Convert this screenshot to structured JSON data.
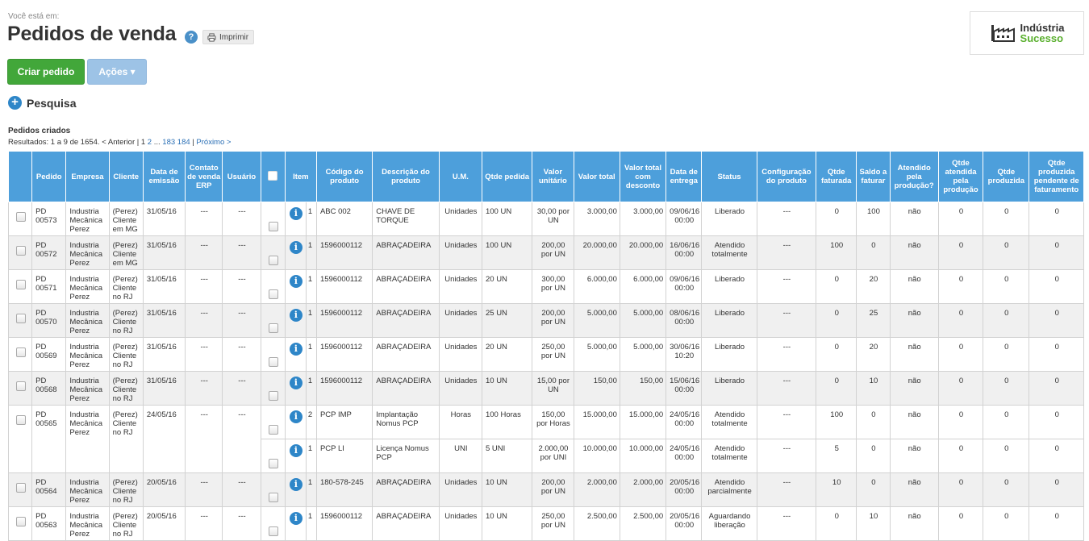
{
  "header": {
    "breadcrumb_label": "Você está em:",
    "title": "Pedidos de venda",
    "help_glyph": "?",
    "print_label": "Imprimir"
  },
  "logo": {
    "line1": "Indústria",
    "line2": "Sucesso"
  },
  "toolbar": {
    "create_label": "Criar pedido",
    "actions_label": "Ações ▾"
  },
  "search": {
    "label": "Pesquisa"
  },
  "list": {
    "section_title": "Pedidos criados",
    "results_prefix": "Resultados: 1 a 9 de 1654. < Anterior | 1 ",
    "page2": "2",
    "ellipsis": " ... ",
    "page183": "183",
    "page184": "184",
    "separator": " | ",
    "next_label": "Próximo >"
  },
  "columns": [
    "",
    "Pedido",
    "Empresa",
    "Cliente",
    "Data de emissão",
    "Contato de venda ERP",
    "Usuário",
    "",
    "Item",
    "",
    "Código do produto",
    "Descrição do produto",
    "U.M.",
    "Qtde pedida",
    "Valor unitário",
    "Valor total",
    "Valor total com desconto",
    "Data de entrega",
    "Status",
    "Configuração do produto",
    "Qtde faturada",
    "Saldo a faturar",
    "Atendido pela produção?",
    "Qtde atendida pela produção",
    "Qtde produzida",
    "Qtde produzida pendente de faturamento"
  ],
  "orders": [
    {
      "pedido": "PD 00573",
      "empresa": "Industria Mecânica Perez",
      "cliente": "(Perez) Cliente em MG",
      "emissao": "31/05/16",
      "contato": "---",
      "usuario": "---",
      "items": [
        {
          "item": "1",
          "codigo": "ABC 002",
          "descricao": "CHAVE DE TORQUE",
          "um": "Unidades",
          "qtde": "100 UN",
          "unitario": "30,00 por UN",
          "total": "3.000,00",
          "total_desc": "3.000,00",
          "entrega": "09/06/16 00:00",
          "status": "Liberado",
          "config": "---",
          "faturada": "0",
          "saldo": "100",
          "atendido": "não",
          "qtde_atendida": "0",
          "produzida": "0",
          "pendente": "0"
        }
      ]
    },
    {
      "pedido": "PD 00572",
      "empresa": "Industria Mecânica Perez",
      "cliente": "(Perez) Cliente em MG",
      "emissao": "31/05/16",
      "contato": "---",
      "usuario": "---",
      "items": [
        {
          "item": "1",
          "codigo": "1596000112",
          "descricao": "ABRAÇADEIRA",
          "um": "Unidades",
          "qtde": "100 UN",
          "unitario": "200,00 por UN",
          "total": "20.000,00",
          "total_desc": "20.000,00",
          "entrega": "16/06/16 00:00",
          "status": "Atendido totalmente",
          "config": "---",
          "faturada": "100",
          "saldo": "0",
          "atendido": "não",
          "qtde_atendida": "0",
          "produzida": "0",
          "pendente": "0"
        }
      ]
    },
    {
      "pedido": "PD 00571",
      "empresa": "Industria Mecânica Perez",
      "cliente": "(Perez) Cliente no RJ",
      "emissao": "31/05/16",
      "contato": "---",
      "usuario": "---",
      "items": [
        {
          "item": "1",
          "codigo": "1596000112",
          "descricao": "ABRAÇADEIRA",
          "um": "Unidades",
          "qtde": "20 UN",
          "unitario": "300,00 por UN",
          "total": "6.000,00",
          "total_desc": "6.000,00",
          "entrega": "09/06/16 00:00",
          "status": "Liberado",
          "config": "---",
          "faturada": "0",
          "saldo": "20",
          "atendido": "não",
          "qtde_atendida": "0",
          "produzida": "0",
          "pendente": "0"
        }
      ]
    },
    {
      "pedido": "PD 00570",
      "empresa": "Industria Mecânica Perez",
      "cliente": "(Perez) Cliente no RJ",
      "emissao": "31/05/16",
      "contato": "---",
      "usuario": "---",
      "items": [
        {
          "item": "1",
          "codigo": "1596000112",
          "descricao": "ABRAÇADEIRA",
          "um": "Unidades",
          "qtde": "25 UN",
          "unitario": "200,00 por UN",
          "total": "5.000,00",
          "total_desc": "5.000,00",
          "entrega": "08/06/16 00:00",
          "status": "Liberado",
          "config": "---",
          "faturada": "0",
          "saldo": "25",
          "atendido": "não",
          "qtde_atendida": "0",
          "produzida": "0",
          "pendente": "0"
        }
      ]
    },
    {
      "pedido": "PD 00569",
      "empresa": "Industria Mecânica Perez",
      "cliente": "(Perez) Cliente no RJ",
      "emissao": "31/05/16",
      "contato": "---",
      "usuario": "---",
      "items": [
        {
          "item": "1",
          "codigo": "1596000112",
          "descricao": "ABRAÇADEIRA",
          "um": "Unidades",
          "qtde": "20 UN",
          "unitario": "250,00 por UN",
          "total": "5.000,00",
          "total_desc": "5.000,00",
          "entrega": "30/06/16 10:20",
          "status": "Liberado",
          "config": "---",
          "faturada": "0",
          "saldo": "20",
          "atendido": "não",
          "qtde_atendida": "0",
          "produzida": "0",
          "pendente": "0"
        }
      ]
    },
    {
      "pedido": "PD 00568",
      "empresa": "Industria Mecânica Perez",
      "cliente": "(Perez) Cliente no RJ",
      "emissao": "31/05/16",
      "contato": "---",
      "usuario": "---",
      "items": [
        {
          "item": "1",
          "codigo": "1596000112",
          "descricao": "ABRAÇADEIRA",
          "um": "Unidades",
          "qtde": "10 UN",
          "unitario": "15,00 por UN",
          "total": "150,00",
          "total_desc": "150,00",
          "entrega": "15/06/16 00:00",
          "status": "Liberado",
          "config": "---",
          "faturada": "0",
          "saldo": "10",
          "atendido": "não",
          "qtde_atendida": "0",
          "produzida": "0",
          "pendente": "0"
        }
      ]
    },
    {
      "pedido": "PD 00565",
      "empresa": "Industria Mecânica Perez",
      "cliente": "(Perez) Cliente no RJ",
      "emissao": "24/05/16",
      "contato": "---",
      "usuario": "---",
      "items": [
        {
          "item": "2",
          "codigo": "PCP IMP",
          "descricao": "Implantação Nomus PCP",
          "um": "Horas",
          "qtde": "100 Horas",
          "unitario": "150,00 por Horas",
          "total": "15.000,00",
          "total_desc": "15.000,00",
          "entrega": "24/05/16 00:00",
          "status": "Atendido totalmente",
          "config": "---",
          "faturada": "100",
          "saldo": "0",
          "atendido": "não",
          "qtde_atendida": "0",
          "produzida": "0",
          "pendente": "0"
        },
        {
          "item": "1",
          "codigo": "PCP LI",
          "descricao": "Licença Nomus PCP",
          "um": "UNI",
          "qtde": "5 UNI",
          "unitario": "2.000,00 por UNI",
          "total": "10.000,00",
          "total_desc": "10.000,00",
          "entrega": "24/05/16 00:00",
          "status": "Atendido totalmente",
          "config": "---",
          "faturada": "5",
          "saldo": "0",
          "atendido": "não",
          "qtde_atendida": "0",
          "produzida": "0",
          "pendente": "0"
        }
      ]
    },
    {
      "pedido": "PD 00564",
      "empresa": "Industria Mecânica Perez",
      "cliente": "(Perez) Cliente no RJ",
      "emissao": "20/05/16",
      "contato": "---",
      "usuario": "---",
      "items": [
        {
          "item": "1",
          "codigo": "180-578-245",
          "descricao": "ABRAÇADEIRA",
          "um": "Unidades",
          "qtde": "10 UN",
          "unitario": "200,00 por UN",
          "total": "2.000,00",
          "total_desc": "2.000,00",
          "entrega": "20/05/16 00:00",
          "status": "Atendido parcialmente",
          "config": "---",
          "faturada": "10",
          "saldo": "0",
          "atendido": "não",
          "qtde_atendida": "0",
          "produzida": "0",
          "pendente": "0"
        }
      ]
    },
    {
      "pedido": "PD 00563",
      "empresa": "Industria Mecânica Perez",
      "cliente": "(Perez) Cliente no RJ",
      "emissao": "20/05/16",
      "contato": "---",
      "usuario": "---",
      "items": [
        {
          "item": "1",
          "codigo": "1596000112",
          "descricao": "ABRAÇADEIRA",
          "um": "Unidades",
          "qtde": "10 UN",
          "unitario": "250,00 por UN",
          "total": "2.500,00",
          "total_desc": "2.500,00",
          "entrega": "20/05/16 00:00",
          "status": "Aguardando liberação",
          "config": "---",
          "faturada": "0",
          "saldo": "10",
          "atendido": "não",
          "qtde_atendida": "0",
          "produzida": "0",
          "pendente": "0"
        }
      ]
    }
  ],
  "colors": {
    "header_bg": "#4d9fdb",
    "create_button": "#42a73a",
    "actions_button": "#9dc3e6",
    "info_icon": "#2e86c8",
    "logo_green": "#5bb030"
  },
  "icons": {
    "help": "question-icon",
    "print": "printer-icon",
    "search": "plus-circle-icon",
    "info": "info-icon",
    "logo": "factory-icon"
  }
}
